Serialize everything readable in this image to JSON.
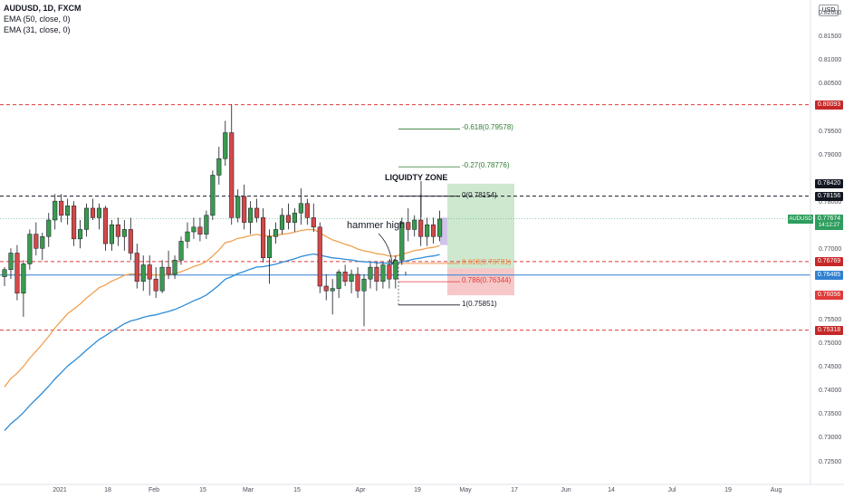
{
  "chart_data": {
    "type": "candlestick",
    "symbol": "AUDUSD, 1D, FXCM",
    "indicators": [
      "EMA (50, close, 0)",
      "EMA (31, close, 0)"
    ],
    "currency_button": "USD",
    "yticks": [
      "0.82000",
      "0.81500",
      "0.81000",
      "0.80500",
      "0.79500",
      "0.79000",
      "0.78000",
      "0.77000",
      "0.76445",
      "0.75500",
      "0.75000",
      "0.74500",
      "0.74000",
      "0.73500",
      "0.73000",
      "0.72500"
    ],
    "yrange": [
      0.7205,
      0.8231
    ],
    "xticks": [
      "2021",
      "18",
      "Feb",
      "15",
      "Mar",
      "15",
      "Apr",
      "19",
      "May",
      "17",
      "Jun",
      "14",
      "Jul",
      "19",
      "Aug"
    ],
    "horizontal_levels": [
      {
        "price": 0.80093,
        "label": "0.80093",
        "style": "dashed",
        "color": "#e03a3a",
        "tag_color": "#c62828"
      },
      {
        "price": 0.78156,
        "label": "0.78156",
        "style": "dashed",
        "color": "#131722",
        "tag_color": "#131722"
      },
      {
        "price": 0.76769,
        "label": "0.76769",
        "style": "dashed",
        "color": "#e03a3a",
        "tag_color": "#c62828"
      },
      {
        "price": 0.76485,
        "label": "0.76485",
        "style": "solid",
        "color": "#2f80d1",
        "tag_color": "#2f80d1"
      },
      {
        "price": 0.75318,
        "label": "0.75318",
        "style": "dashed",
        "color": "#e03a3a",
        "tag_color": "#c62828"
      }
    ],
    "extra_price_tags": [
      {
        "price": 0.7842,
        "label": "0.78420",
        "color": "#131722"
      },
      {
        "price": 0.76056,
        "label": "0.76056",
        "color": "#e03a3a"
      }
    ],
    "current_price": {
      "label": "AUDUSD",
      "value": "0.77674",
      "countdown": "14:12:27",
      "price": 0.77674,
      "color": "#2e9e5e"
    },
    "fibonacci": [
      {
        "level": "-0.618(0.79578)",
        "price": 0.79578,
        "color": "#2e7d32"
      },
      {
        "level": "-0.27(0.78776)",
        "price": 0.78776,
        "color": "#2e7d32"
      },
      {
        "level": "0(0.78154)",
        "price": 0.78154,
        "color": "#131722"
      },
      {
        "level": "0.618(0.76731)",
        "price": 0.76731,
        "color": "#f08a3c"
      },
      {
        "level": "0.786(0.76344)",
        "price": 0.76344,
        "color": "#e03a3a"
      },
      {
        "level": "1(0.75851)",
        "price": 0.75851,
        "color": "#131722"
      }
    ],
    "position": {
      "entry": 0.76625,
      "target": 0.7842,
      "stop": 0.76056
    },
    "annotations": {
      "liquidity": "LIQUIDTY ZONE",
      "hammer": "hammer high"
    },
    "candles": [
      [
        0.7645,
        0.7665,
        0.7625,
        0.766
      ],
      [
        0.766,
        0.7705,
        0.764,
        0.7695
      ],
      [
        0.7695,
        0.7712,
        0.7595,
        0.761
      ],
      [
        0.761,
        0.768,
        0.756,
        0.7672
      ],
      [
        0.7672,
        0.7745,
        0.766,
        0.7735
      ],
      [
        0.7735,
        0.776,
        0.769,
        0.7705
      ],
      [
        0.7705,
        0.7738,
        0.768,
        0.773
      ],
      [
        0.773,
        0.778,
        0.7708,
        0.7765
      ],
      [
        0.7765,
        0.782,
        0.7745,
        0.7805
      ],
      [
        0.7805,
        0.782,
        0.776,
        0.7775
      ],
      [
        0.7775,
        0.781,
        0.7755,
        0.7795
      ],
      [
        0.7795,
        0.7805,
        0.771,
        0.7725
      ],
      [
        0.7725,
        0.7765,
        0.7705,
        0.7745
      ],
      [
        0.7745,
        0.78,
        0.773,
        0.779
      ],
      [
        0.779,
        0.781,
        0.7765,
        0.777
      ],
      [
        0.777,
        0.78,
        0.7745,
        0.779
      ],
      [
        0.779,
        0.7795,
        0.77,
        0.7715
      ],
      [
        0.7715,
        0.7765,
        0.77,
        0.7755
      ],
      [
        0.7755,
        0.777,
        0.771,
        0.773
      ],
      [
        0.773,
        0.7765,
        0.77,
        0.7745
      ],
      [
        0.7745,
        0.777,
        0.768,
        0.7695
      ],
      [
        0.7695,
        0.7715,
        0.762,
        0.7635
      ],
      [
        0.7635,
        0.769,
        0.7615,
        0.767
      ],
      [
        0.767,
        0.769,
        0.7605,
        0.764
      ],
      [
        0.764,
        0.7665,
        0.76,
        0.7615
      ],
      [
        0.7615,
        0.768,
        0.761,
        0.7665
      ],
      [
        0.7665,
        0.77,
        0.764,
        0.765
      ],
      [
        0.765,
        0.769,
        0.764,
        0.768
      ],
      [
        0.768,
        0.773,
        0.767,
        0.772
      ],
      [
        0.772,
        0.776,
        0.7705,
        0.774
      ],
      [
        0.774,
        0.777,
        0.7725,
        0.775
      ],
      [
        0.775,
        0.777,
        0.772,
        0.7735
      ],
      [
        0.7735,
        0.7785,
        0.7725,
        0.7775
      ],
      [
        0.7775,
        0.787,
        0.7765,
        0.786
      ],
      [
        0.786,
        0.792,
        0.784,
        0.7895
      ],
      [
        0.7895,
        0.7975,
        0.788,
        0.795
      ],
      [
        0.795,
        0.801,
        0.7755,
        0.777
      ],
      [
        0.777,
        0.783,
        0.776,
        0.7815
      ],
      [
        0.7815,
        0.784,
        0.7745,
        0.776
      ],
      [
        0.776,
        0.7805,
        0.7735,
        0.779
      ],
      [
        0.779,
        0.781,
        0.776,
        0.777
      ],
      [
        0.777,
        0.779,
        0.7675,
        0.7685
      ],
      [
        0.7685,
        0.7745,
        0.763,
        0.773
      ],
      [
        0.773,
        0.776,
        0.7715,
        0.7745
      ],
      [
        0.7745,
        0.779,
        0.7735,
        0.7775
      ],
      [
        0.7775,
        0.78,
        0.7745,
        0.776
      ],
      [
        0.776,
        0.779,
        0.774,
        0.778
      ],
      [
        0.778,
        0.7832,
        0.7755,
        0.78
      ],
      [
        0.78,
        0.781,
        0.7755,
        0.777
      ],
      [
        0.777,
        0.78,
        0.774,
        0.775
      ],
      [
        0.775,
        0.776,
        0.761,
        0.7625
      ],
      [
        0.7625,
        0.765,
        0.7595,
        0.7615
      ],
      [
        0.7615,
        0.764,
        0.7565,
        0.762
      ],
      [
        0.762,
        0.766,
        0.76,
        0.7655
      ],
      [
        0.7655,
        0.767,
        0.7625,
        0.7635
      ],
      [
        0.7635,
        0.766,
        0.761,
        0.765
      ],
      [
        0.765,
        0.7665,
        0.76,
        0.7615
      ],
      [
        0.7615,
        0.765,
        0.754,
        0.764
      ],
      [
        0.764,
        0.7675,
        0.762,
        0.7665
      ],
      [
        0.7665,
        0.7675,
        0.7615,
        0.7635
      ],
      [
        0.7635,
        0.7675,
        0.762,
        0.767
      ],
      [
        0.767,
        0.768,
        0.762,
        0.764
      ],
      [
        0.764,
        0.769,
        0.762,
        0.768
      ],
      [
        0.768,
        0.777,
        0.767,
        0.776
      ],
      [
        0.776,
        0.779,
        0.772,
        0.7745
      ],
      [
        0.7745,
        0.7775,
        0.773,
        0.7765
      ],
      [
        0.7765,
        0.782,
        0.771,
        0.773
      ],
      [
        0.773,
        0.777,
        0.771,
        0.7755
      ],
      [
        0.7755,
        0.777,
        0.7715,
        0.773
      ],
      [
        0.773,
        0.7785,
        0.772,
        0.7767
      ]
    ]
  }
}
